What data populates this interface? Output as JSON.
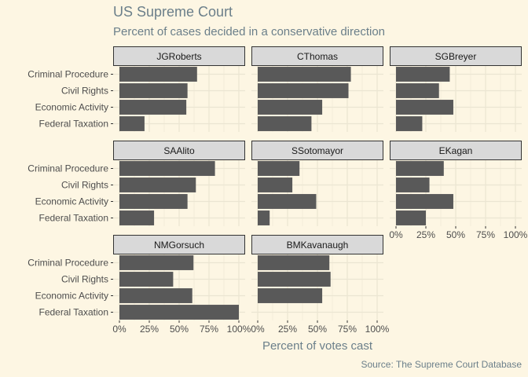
{
  "chart_data": {
    "type": "bar",
    "orientation": "horizontal",
    "title": "US Supreme Court",
    "subtitle": "Percent of cases decided in a conservative direction",
    "xlabel": "Percent of votes cast",
    "ylabel": "",
    "caption": "Source: The Supreme Court Database",
    "categories": [
      "Criminal Procedure",
      "Civil Rights",
      "Economic Activity",
      "Federal Taxation"
    ],
    "xlim": [
      0,
      100
    ],
    "xticks": [
      "0%",
      "25%",
      "50%",
      "75%",
      "100%"
    ],
    "grid": true,
    "bar_color": "#595959",
    "panels": [
      {
        "name": "JGRoberts",
        "values": [
          65,
          57,
          56,
          21
        ]
      },
      {
        "name": "CThomas",
        "values": [
          78,
          76,
          54,
          45
        ]
      },
      {
        "name": "SGBreyer",
        "values": [
          45,
          36,
          48,
          22
        ]
      },
      {
        "name": "SAAlito",
        "values": [
          80,
          64,
          57,
          29
        ]
      },
      {
        "name": "SSotomayor",
        "values": [
          35,
          29,
          49,
          10
        ]
      },
      {
        "name": "EKagan",
        "values": [
          40,
          28,
          48,
          25
        ]
      },
      {
        "name": "NMGorsuch",
        "values": [
          62,
          45,
          61,
          100
        ]
      },
      {
        "name": "BMKavanaugh",
        "values": [
          60,
          61,
          54
        ]
      }
    ]
  }
}
